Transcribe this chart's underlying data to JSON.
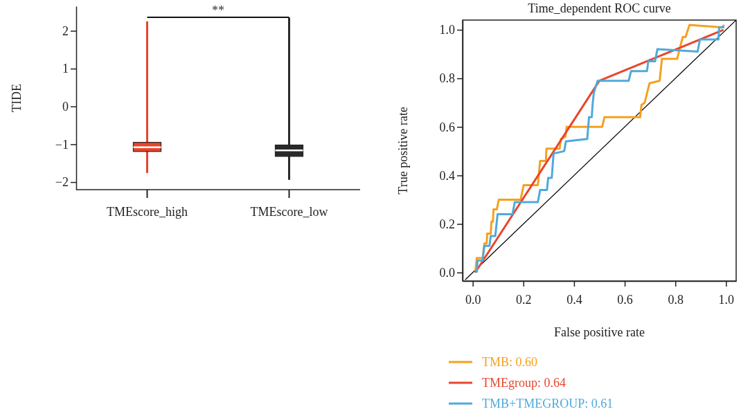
{
  "chart_data": [
    {
      "type": "box",
      "ylabel": "TIDE",
      "categories": [
        "TMEscore_high",
        "TMEscore_low"
      ],
      "colors": [
        "#e8452c",
        "#2a2a2a"
      ],
      "boxes": [
        {
          "low": -1.76,
          "q1": -1.19,
          "median": -1.08,
          "q3": -0.95,
          "high": 2.25
        },
        {
          "low": -1.94,
          "q1": -1.32,
          "median": -1.16,
          "q3": -1.02,
          "high": 2.35
        }
      ],
      "ylim": [
        -2.2,
        2.65
      ],
      "yticks": [
        {
          "value": -2,
          "label": "−2"
        },
        {
          "value": -1,
          "label": "−1"
        },
        0,
        1,
        2
      ],
      "annotations": [
        "**"
      ],
      "grid": false
    },
    {
      "type": "line",
      "title": "Time_dependent ROC curve",
      "xlabel": "False positive rate",
      "ylabel": "True positive rate",
      "xlim": [
        -0.04,
        1.04
      ],
      "ylim": [
        -0.035,
        1.04
      ],
      "xticks": [
        {
          "value": 0,
          "label": "0.0"
        },
        {
          "value": 0.2,
          "label": "0.2"
        },
        {
          "value": 0.4,
          "label": "0.4"
        },
        {
          "value": 0.6,
          "label": "0.6"
        },
        {
          "value": 0.8,
          "label": "0.8"
        },
        {
          "value": 1,
          "label": "1.0"
        }
      ],
      "yticks": [
        {
          "value": 0,
          "label": "0.0"
        },
        {
          "value": 0.2,
          "label": "0.2"
        },
        {
          "value": 0.4,
          "label": "0.4"
        },
        {
          "value": 0.6,
          "label": "0.6"
        },
        {
          "value": 0.8,
          "label": "0.8"
        },
        {
          "value": 1,
          "label": "1.0"
        }
      ],
      "grid": false,
      "legend": "bottom",
      "marker": "none",
      "line_style": "solid",
      "series": [
        {
          "color": "#000000",
          "x": [
            -0.03,
            1.04
          ],
          "values": [
            -0.03,
            1.04
          ]
        },
        {
          "name": "TMB: 0.60",
          "color": "#f5a01f",
          "x": [
            0.01,
            0.016,
            0.039,
            0.046,
            0.055,
            0.057,
            0.071,
            0.074,
            0.08,
            0.082,
            0.095,
            0.103,
            0.189,
            0.201,
            0.257,
            0.266,
            0.289,
            0.291,
            0.343,
            0.348,
            0.366,
            0.371,
            0.398,
            0.511,
            0.52,
            0.661,
            0.666,
            0.679,
            0.698,
            0.738,
            0.747,
            0.807,
            0.829,
            0.84,
            0.856,
            0.984,
            0.993
          ],
          "values": [
            0.0,
            0.06,
            0.06,
            0.12,
            0.12,
            0.16,
            0.16,
            0.21,
            0.21,
            0.26,
            0.26,
            0.3,
            0.3,
            0.36,
            0.36,
            0.46,
            0.46,
            0.51,
            0.51,
            0.55,
            0.56,
            0.6,
            0.6,
            0.6,
            0.64,
            0.64,
            0.69,
            0.7,
            0.78,
            0.79,
            0.88,
            0.88,
            0.97,
            0.97,
            1.02,
            1.01,
            1.02
          ]
        },
        {
          "name": "TMEgroup: 0.64",
          "color": "#e8452c",
          "x": [
            0.01,
            0.5,
            0.99
          ],
          "values": [
            0.0,
            0.79,
            1.0
          ]
        },
        {
          "name": "TMB+TMEGROUP: 0.61",
          "color": "#4fa9dc",
          "x": [
            0.016,
            0.019,
            0.039,
            0.046,
            0.066,
            0.071,
            0.089,
            0.098,
            0.157,
            0.166,
            0.257,
            0.266,
            0.293,
            0.298,
            0.312,
            0.319,
            0.361,
            0.368,
            0.452,
            0.459,
            0.47,
            0.473,
            0.478,
            0.493,
            0.616,
            0.625,
            0.688,
            0.693,
            0.72,
            0.729,
            0.888,
            0.897,
            0.97,
            0.973,
            0.993
          ],
          "values": [
            0.0,
            0.05,
            0.05,
            0.11,
            0.11,
            0.15,
            0.15,
            0.24,
            0.24,
            0.29,
            0.29,
            0.34,
            0.34,
            0.39,
            0.39,
            0.49,
            0.5,
            0.54,
            0.55,
            0.64,
            0.64,
            0.69,
            0.74,
            0.79,
            0.79,
            0.83,
            0.83,
            0.87,
            0.87,
            0.92,
            0.91,
            0.96,
            0.96,
            1.01,
            1.01
          ]
        }
      ]
    }
  ]
}
